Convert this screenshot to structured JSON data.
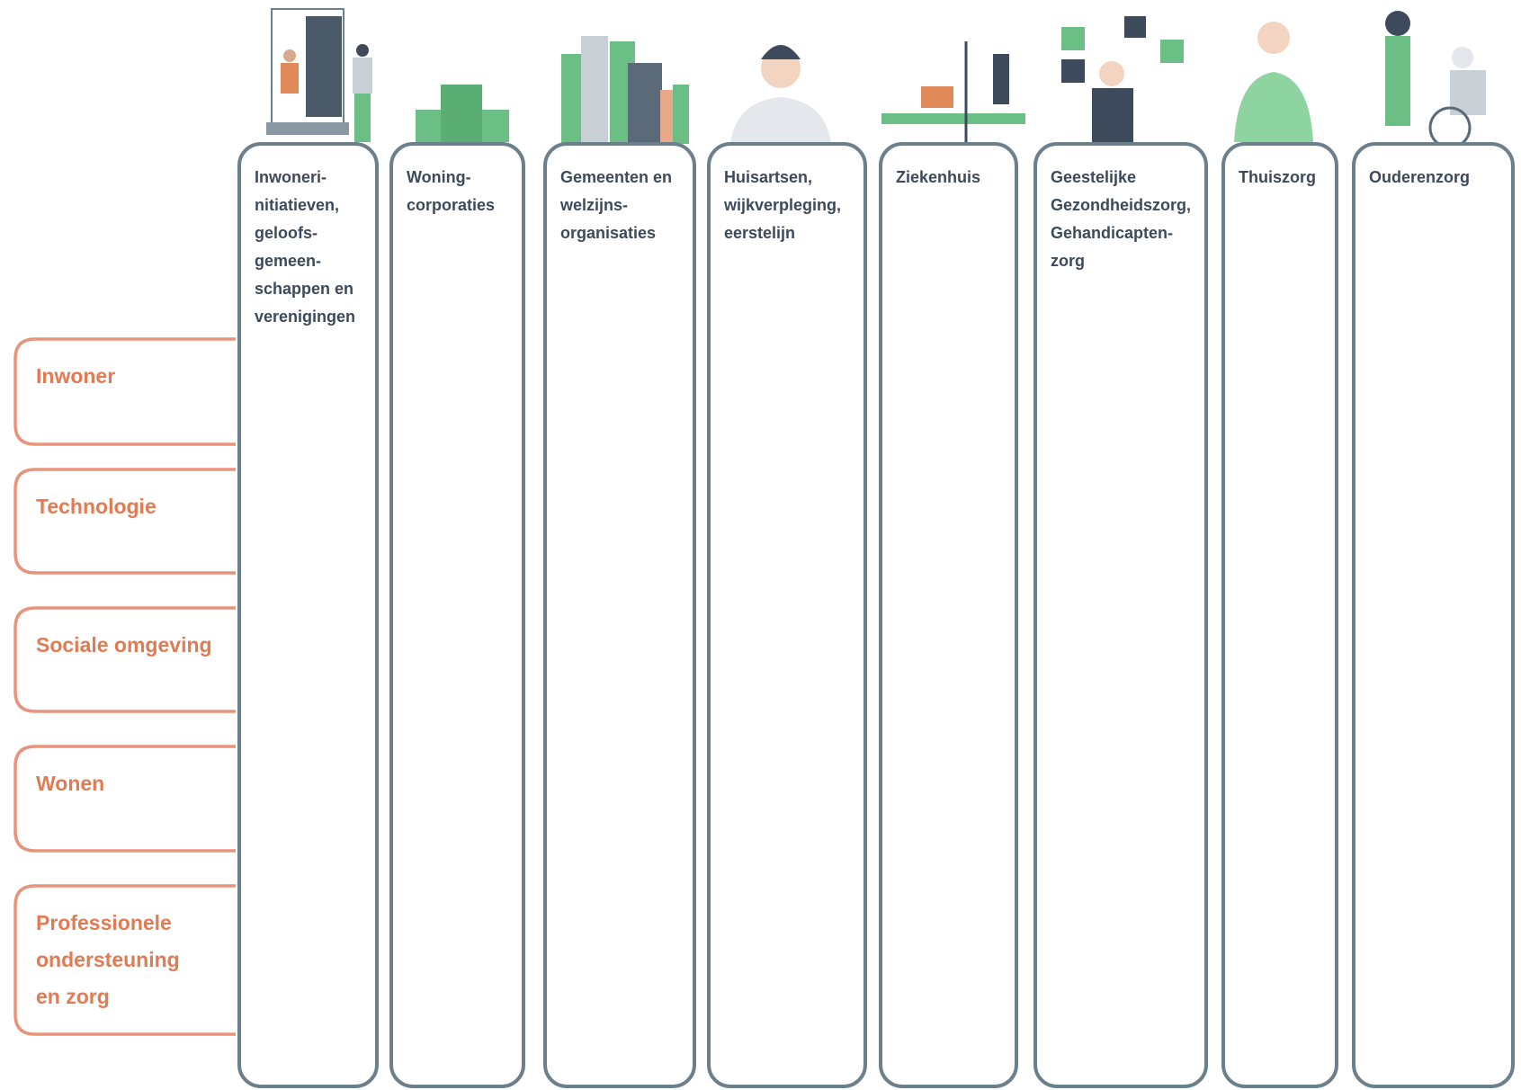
{
  "columns": [
    {
      "lines": [
        "Inwoneri-",
        "nitiatieven,",
        "geloofs-",
        "gemeen-",
        "schappen en",
        "verenigingen"
      ]
    },
    {
      "lines": [
        "Woning-",
        "corporaties"
      ]
    },
    {
      "lines": [
        "Gemeenten en",
        "welzijns-",
        "organisaties"
      ]
    },
    {
      "lines": [
        "Huisartsen,",
        "wijkverpleging,",
        "eerstelijn"
      ]
    },
    {
      "lines": [
        "Ziekenhuis"
      ]
    },
    {
      "lines": [
        "Geestelijke",
        "Gezondheidszorg,",
        "Gehandicapten-",
        "zorg"
      ]
    },
    {
      "lines": [
        "Thuiszorg"
      ]
    },
    {
      "lines": [
        "Ouderenzorg"
      ]
    }
  ],
  "rows": [
    {
      "lines": [
        "Inwoner"
      ]
    },
    {
      "lines": [
        "Technologie"
      ]
    },
    {
      "lines": [
        "Sociale omgeving"
      ]
    },
    {
      "lines": [
        "Wonen"
      ]
    },
    {
      "lines": [
        "Professionele",
        "ondersteuning",
        "en zorg"
      ]
    }
  ]
}
